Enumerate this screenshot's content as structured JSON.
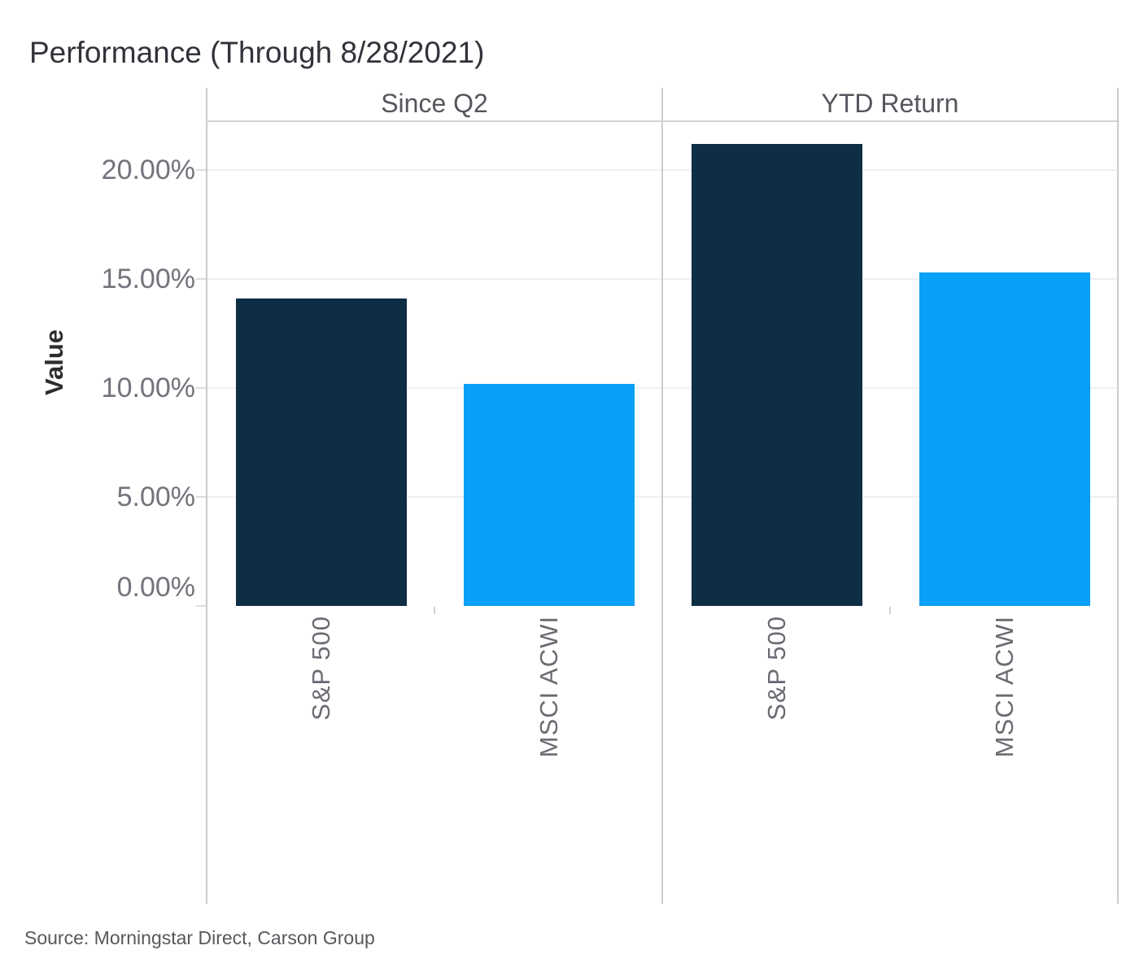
{
  "title": "Performance (Through 8/28/2021)",
  "source": "Source: Morningstar Direct, Carson Group",
  "chart_data": {
    "type": "bar",
    "title": "Performance (Through 8/28/2021)",
    "ylabel": "Value",
    "xlabel": "",
    "ylim": [
      0,
      22.1
    ],
    "grid": "horizontal",
    "legend": "none",
    "y_ticks": [
      {
        "value": 0,
        "label": "0.00%"
      },
      {
        "value": 5,
        "label": "5.00%"
      },
      {
        "value": 10,
        "label": "10.00%"
      },
      {
        "value": 15,
        "label": "15.00%"
      },
      {
        "value": 20,
        "label": "20.00%"
      }
    ],
    "panels": [
      {
        "label": "Since Q2",
        "bars": [
          {
            "category": "S&P 500",
            "value": 14.1,
            "color": "#0e2e46"
          },
          {
            "category": "MSCI ACWI",
            "value": 10.2,
            "color": "#0a9ff8"
          }
        ]
      },
      {
        "label": "YTD Return",
        "bars": [
          {
            "category": "S&P 500",
            "value": 21.2,
            "color": "#0e2e46"
          },
          {
            "category": "MSCI ACWI",
            "value": 15.3,
            "color": "#0a9ff8"
          }
        ]
      }
    ],
    "colors": {
      "navy": "#0e2e46",
      "light_blue": "#0a9ff8"
    }
  }
}
